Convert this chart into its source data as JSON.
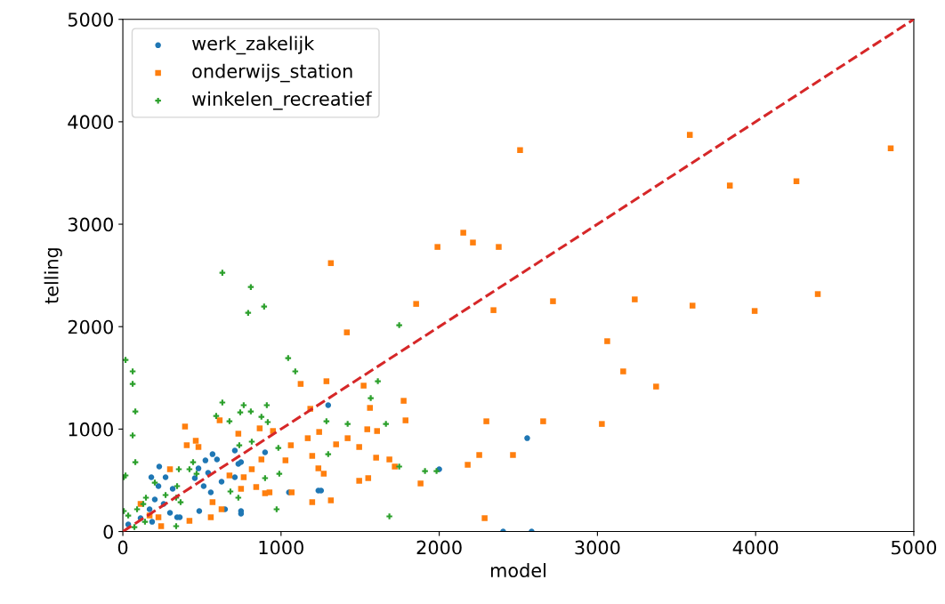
{
  "chart_data": {
    "type": "scatter",
    "xlabel": "model",
    "ylabel": "telling",
    "xlim": [
      0,
      5000
    ],
    "ylim": [
      0,
      5000
    ],
    "xticks": [
      0,
      1000,
      2000,
      3000,
      4000,
      5000
    ],
    "yticks": [
      0,
      1000,
      2000,
      3000,
      4000,
      5000
    ],
    "grid": false,
    "legend": "top left",
    "series": [
      {
        "name": "werk_zakelijk",
        "color": "#1f77b4",
        "marker": "circle",
        "x": [
          1298,
          899,
          567,
          522,
          595,
          708,
          730,
          478,
          455,
          624,
          539,
          511,
          556,
          230,
          180,
          270,
          315,
          225,
          202,
          258,
          169,
          298,
          185,
          343,
          483,
          747,
          747,
          646,
          1050,
          1236,
          1253,
          360,
          112,
          34,
          708,
          747,
          2556,
          2000,
          2404,
          2584
        ],
        "values": [
          1233,
          773,
          755,
          694,
          703,
          790,
          660,
          616,
          521,
          486,
          573,
          443,
          382,
          634,
          530,
          530,
          417,
          443,
          313,
          269,
          217,
          182,
          95,
          139,
          200,
          200,
          174,
          217,
          382,
          399,
          399,
          139,
          130,
          69,
          530,
          677,
          911,
          608,
          0,
          0
        ]
      },
      {
        "name": "onderwijs_station",
        "color": "#ff7f0e",
        "marker": "square",
        "x": [
          2511,
          3584,
          4854,
          3837,
          4258,
          4393,
          1989,
          2152,
          2213,
          2376,
          1315,
          1854,
          2343,
          2719,
          3236,
          3601,
          3994,
          3062,
          3163,
          3371,
          1416,
          1124,
          1287,
          1522,
          1562,
          1775,
          1787,
          2298,
          2657,
          3028,
          1185,
          393,
          404,
          461,
          478,
          612,
          730,
          865,
          949,
          1062,
          1169,
          1241,
          1348,
          1421,
          1494,
          1545,
          1607,
          1601,
          1685,
          1719,
          1197,
          1236,
          1270,
          1028,
          876,
          815,
          764,
          747,
          843,
          899,
          927,
          1067,
          1197,
          1315,
          1494,
          1551,
          674,
          567,
          556,
          421,
          298,
          242,
          112,
          169,
          225,
          624,
          2253,
          2466,
          2180,
          1882,
          2287
        ],
        "values": [
          3724,
          3872,
          3741,
          3377,
          3420,
          2318,
          2778,
          2917,
          2821,
          2778,
          2620,
          2222,
          2161,
          2248,
          2266,
          2205,
          2153,
          1858,
          1563,
          1415,
          1944,
          1441,
          1467,
          1424,
          1207,
          1276,
          1085,
          1076,
          1076,
          1050,
          1198,
          1024,
          842,
          885,
          825,
          1085,
          955,
          1007,
          981,
          842,
          911,
          972,
          851,
          911,
          825,
          998,
          981,
          720,
          703,
          634,
          738,
          616,
          564,
          694,
          703,
          608,
          530,
          417,
          434,
          373,
          382,
          382,
          286,
          304,
          495,
          521,
          547,
          286,
          139,
          104,
          608,
          52,
          269,
          156,
          139,
          217,
          747,
          747,
          651,
          469,
          130
        ]
      },
      {
        "name": "winkelen_recreatief",
        "color": "#2ca02c",
        "marker": "cross",
        "x": [
          629,
          809,
          792,
          893,
          1747,
          1045,
          1090,
          1612,
          1567,
          17,
          62,
          62,
          79,
          62,
          79,
          17,
          629,
          764,
          809,
          910,
          742,
          590,
          674,
          876,
          916,
          815,
          736,
          983,
          1287,
          1421,
          1298,
          1663,
          1747,
          972,
          1685,
          989,
          899,
          730,
          680,
          421,
          354,
          343,
          337,
          365,
          270,
          146,
          129,
          90,
          6,
          34,
          140,
          337,
          444,
          466,
          202,
          6,
          73,
          1910,
          1983
        ],
        "values": [
          2526,
          2387,
          2135,
          2196,
          2014,
          1693,
          1563,
          1467,
          1302,
          1675,
          1563,
          1441,
          1172,
          938,
          677,
          547,
          1259,
          1233,
          1172,
          1233,
          1163,
          1128,
          1076,
          1120,
          1068,
          877,
          842,
          816,
          1076,
          1050,
          755,
          1050,
          634,
          217,
          148,
          564,
          521,
          330,
          391,
          608,
          608,
          443,
          330,
          286,
          356,
          330,
          269,
          217,
          200,
          156,
          95,
          52,
          677,
          564,
          477,
          530,
          43,
          590,
          590
        ]
      },
      {
        "type": "line",
        "color": "#d62728",
        "line_style": "dashed",
        "x": [
          0,
          5000
        ],
        "values": [
          0,
          5000
        ]
      }
    ]
  }
}
